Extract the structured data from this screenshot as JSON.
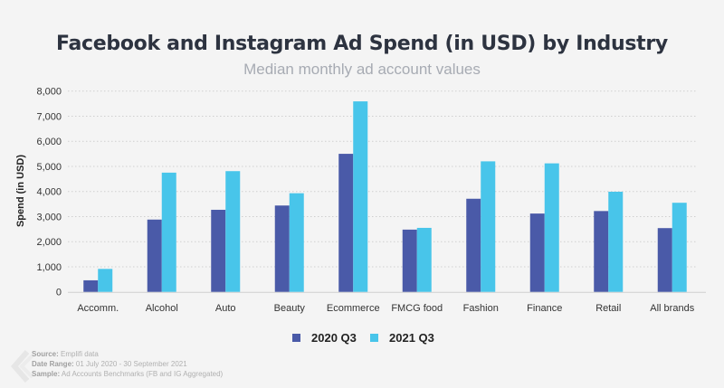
{
  "chart_data": {
    "type": "bar",
    "title": "Facebook and Instagram Ad Spend (in USD) by Industry",
    "subtitle": "Median monthly ad account values",
    "ylabel": "Spend (in USD)",
    "xlabel": "",
    "ylim": [
      0,
      8000
    ],
    "yticks": [
      "0",
      "1,000",
      "2,000",
      "3,000",
      "4,000",
      "5,000",
      "6,000",
      "7,000",
      "8,000"
    ],
    "grid": true,
    "legend_position": "bottom",
    "categories": [
      "Accomm.",
      "Alcohol",
      "Auto",
      "Beauty",
      "Ecommerce",
      "FMCG food",
      "Fashion",
      "Finance",
      "Retail",
      "All brands"
    ],
    "series": [
      {
        "name": "2020 Q3",
        "color": "#4a5aa8",
        "values": [
          460,
          2880,
          3270,
          3440,
          5500,
          2480,
          3710,
          3120,
          3220,
          2540
        ]
      },
      {
        "name": "2021 Q3",
        "color": "#48c5ea",
        "values": [
          915,
          4750,
          4810,
          3930,
          7590,
          2550,
          5200,
          5120,
          3990,
          3550
        ]
      }
    ]
  },
  "notes": {
    "source_label": "Source:",
    "source": "Emplifi data",
    "range_label": "Date Range:",
    "range": "01 July 2020 - 30 September 2021",
    "sample_label": "Sample:",
    "sample": "Ad Accounts Benchmarks (FB and IG Aggregated)"
  }
}
